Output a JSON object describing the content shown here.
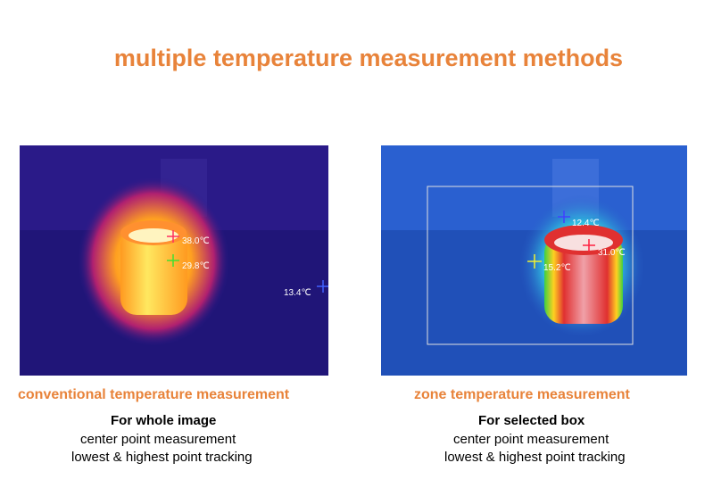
{
  "title": "multiple temperature measurement methods",
  "panels": [
    {
      "heading": "conventional temperature measurement",
      "subject": "For whole image",
      "lines": [
        "center point measurement",
        "lowest & highest point  tracking"
      ],
      "readings": [
        {
          "label": "38.0℃"
        },
        {
          "label": "29.8℃"
        },
        {
          "label": "13.4℃"
        }
      ]
    },
    {
      "heading": "zone temperature measurement",
      "subject": "For selected box",
      "lines": [
        "center point measurement",
        "lowest & highest point  tracking"
      ],
      "readings": [
        {
          "label": "12.4℃"
        },
        {
          "label": "31.0℃"
        },
        {
          "label": "15.2℃"
        }
      ]
    }
  ]
}
